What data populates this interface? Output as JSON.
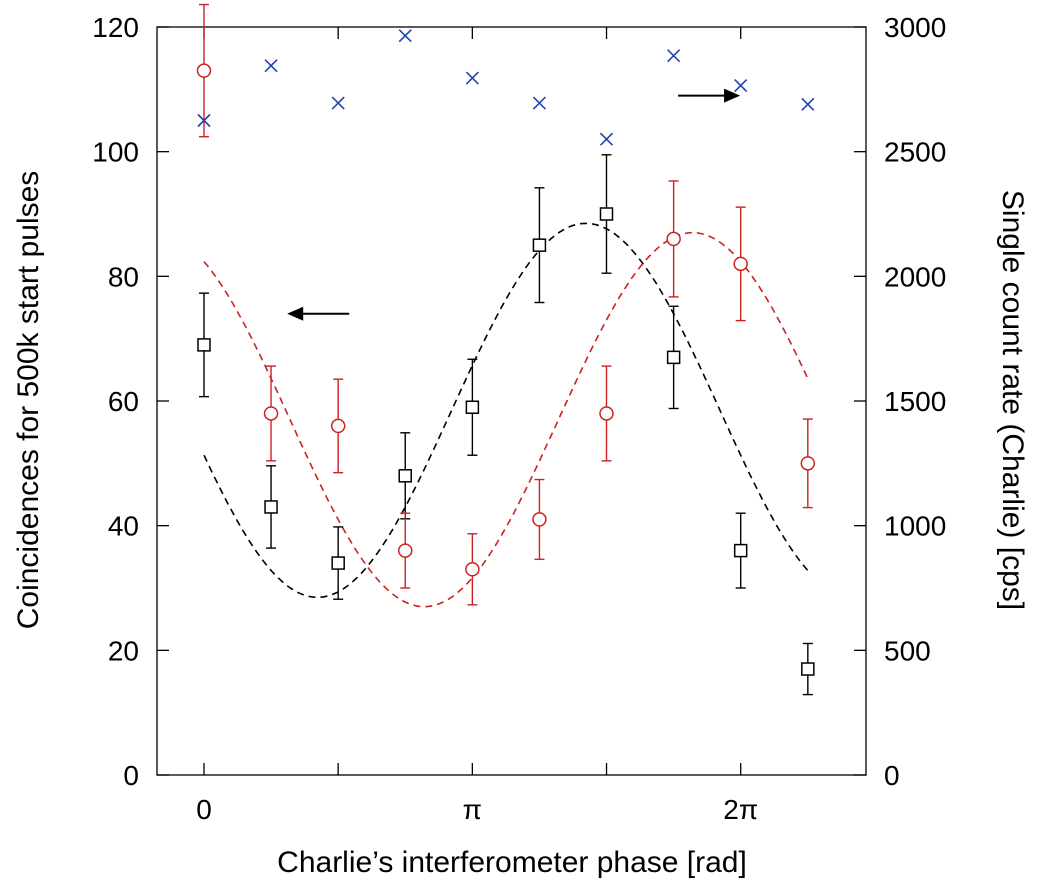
{
  "chart_data": {
    "type": "scatter",
    "xlabel": "Charlie’s interferometer phase [rad]",
    "ylabel_left": "Coincidences for 500k start pulses",
    "ylabel_right": "Single count rate (Charlie) [cps]",
    "xlim": [
      -0.55,
      7.75
    ],
    "ylim_left": [
      0,
      120
    ],
    "ylim_right": [
      0,
      3000
    ],
    "x_ticks": [
      {
        "value": 0,
        "label": "0"
      },
      {
        "value": 3.1416,
        "label": "π"
      },
      {
        "value": 6.2832,
        "label": "2π"
      }
    ],
    "x_minor_ticks": [
      1.5708,
      4.7124
    ],
    "y_ticks_left": [
      {
        "value": 0,
        "label": "0"
      },
      {
        "value": 20,
        "label": "20"
      },
      {
        "value": 40,
        "label": "40"
      },
      {
        "value": 60,
        "label": "60"
      },
      {
        "value": 80,
        "label": "80"
      },
      {
        "value": 100,
        "label": "100"
      },
      {
        "value": 120,
        "label": "120"
      }
    ],
    "y_ticks_right": [
      {
        "value": 0,
        "label": "0"
      },
      {
        "value": 500,
        "label": "500"
      },
      {
        "value": 1000,
        "label": "1000"
      },
      {
        "value": 1500,
        "label": "1500"
      },
      {
        "value": 2000,
        "label": "2000"
      },
      {
        "value": 2500,
        "label": "2500"
      },
      {
        "value": 3000,
        "label": "3000"
      }
    ],
    "grid": false,
    "series": [
      {
        "marker": "square",
        "axis": "left",
        "color": "#000000",
        "points": [
          {
            "x": 0.0,
            "y": 69,
            "err": 8.3
          },
          {
            "x": 0.785,
            "y": 43,
            "err": 6.6
          },
          {
            "x": 1.571,
            "y": 34,
            "err": 5.8
          },
          {
            "x": 2.356,
            "y": 48,
            "err": 6.9
          },
          {
            "x": 3.142,
            "y": 59,
            "err": 7.7
          },
          {
            "x": 3.927,
            "y": 85,
            "err": 9.2
          },
          {
            "x": 4.712,
            "y": 90,
            "err": 9.5
          },
          {
            "x": 5.498,
            "y": 67,
            "err": 8.2
          },
          {
            "x": 6.283,
            "y": 36,
            "err": 6.0
          },
          {
            "x": 7.069,
            "y": 17,
            "err": 4.1
          }
        ]
      },
      {
        "marker": "circle",
        "axis": "left",
        "color": "#cc2222",
        "points": [
          {
            "x": 0.0,
            "y": 113,
            "err": 10.6
          },
          {
            "x": 0.785,
            "y": 58,
            "err": 7.6
          },
          {
            "x": 1.571,
            "y": 56,
            "err": 7.5
          },
          {
            "x": 2.356,
            "y": 36,
            "err": 6.0
          },
          {
            "x": 3.142,
            "y": 33,
            "err": 5.7
          },
          {
            "x": 3.927,
            "y": 41,
            "err": 6.4
          },
          {
            "x": 4.712,
            "y": 58,
            "err": 7.6
          },
          {
            "x": 5.498,
            "y": 86,
            "err": 9.3
          },
          {
            "x": 6.283,
            "y": 82,
            "err": 9.1
          },
          {
            "x": 7.069,
            "y": 50,
            "err": 7.1
          }
        ]
      },
      {
        "marker": "x",
        "axis": "right",
        "color": "#2244aa",
        "points": [
          {
            "x": 0.0,
            "y": 2625
          },
          {
            "x": 0.785,
            "y": 2845
          },
          {
            "x": 1.571,
            "y": 2695
          },
          {
            "x": 2.356,
            "y": 2965
          },
          {
            "x": 3.142,
            "y": 2795
          },
          {
            "x": 3.927,
            "y": 2695
          },
          {
            "x": 4.712,
            "y": 2550
          },
          {
            "x": 5.498,
            "y": 2885
          },
          {
            "x": 6.283,
            "y": 2765
          },
          {
            "x": 7.069,
            "y": 2690
          }
        ]
      }
    ],
    "fits": [
      {
        "axis": "left",
        "color": "#000000",
        "style": "dashed",
        "offset": 58.5,
        "amplitude": 30,
        "phase": 4.47,
        "period": 6.283,
        "x_range": [
          0,
          7.069
        ]
      },
      {
        "axis": "left",
        "color": "#cc2222",
        "style": "dashed",
        "offset": 57,
        "amplitude": 30,
        "phase": 5.72,
        "period": 6.283,
        "x_range": [
          0,
          7.069
        ]
      }
    ],
    "annotations": [
      {
        "type": "arrow",
        "direction": "left",
        "meaning": "coincidences use left axis",
        "x": 1.7,
        "y": 74
      },
      {
        "type": "arrow",
        "direction": "right",
        "meaning": "single counts use right axis",
        "x": 5.55,
        "y": 109
      }
    ]
  }
}
